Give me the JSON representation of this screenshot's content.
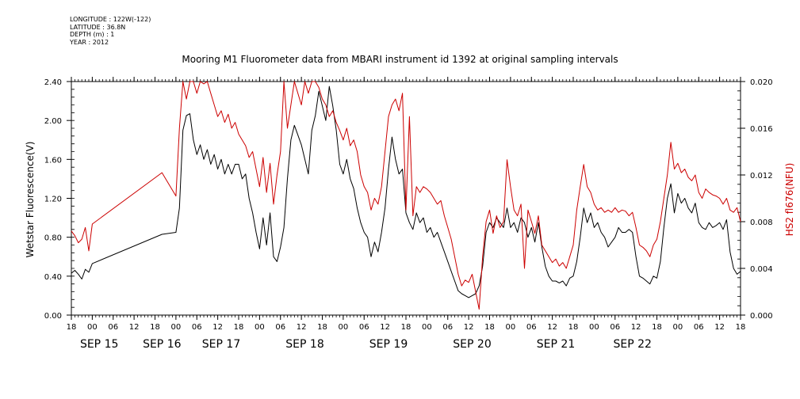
{
  "meta": {
    "longitude": "LONGITUDE : 122W(-122)",
    "latitude": "LATITUDE : 36.8N",
    "depth": "DEPTH (m) : 1",
    "year": "YEAR : 2012"
  },
  "chart_data": {
    "type": "line",
    "title": "Mooring M1 Fluorometer data from MBARI instrument id 1392 at original sampling intervals",
    "xlabel": "",
    "ylabel": "Wetstar Fluorescence(V)",
    "ylabel_right": "HS2 fl676(NFU)",
    "xlim": [
      -6,
      186
    ],
    "ylim": [
      0,
      2.4
    ],
    "ylim_right": [
      0,
      0.02
    ],
    "yticks": [
      "0.00",
      "0.40",
      "0.80",
      "1.20",
      "1.60",
      "2.00",
      "2.40"
    ],
    "yticks_right": [
      "0.000",
      "0.004",
      "0.008",
      "0.012",
      "0.016",
      "0.020"
    ],
    "hour_ticks": [
      {
        "h": -6,
        "label": "18"
      },
      {
        "h": 0,
        "label": "00"
      },
      {
        "h": 6,
        "label": "06"
      },
      {
        "h": 12,
        "label": "12"
      },
      {
        "h": 18,
        "label": "18"
      },
      {
        "h": 24,
        "label": "00"
      },
      {
        "h": 30,
        "label": "06"
      },
      {
        "h": 36,
        "label": "12"
      },
      {
        "h": 42,
        "label": "18"
      },
      {
        "h": 48,
        "label": "00"
      },
      {
        "h": 54,
        "label": "06"
      },
      {
        "h": 60,
        "label": "12"
      },
      {
        "h": 66,
        "label": "18"
      },
      {
        "h": 72,
        "label": "00"
      },
      {
        "h": 78,
        "label": "06"
      },
      {
        "h": 84,
        "label": "12"
      },
      {
        "h": 90,
        "label": "18"
      },
      {
        "h": 96,
        "label": "00"
      },
      {
        "h": 102,
        "label": "06"
      },
      {
        "h": 108,
        "label": "12"
      },
      {
        "h": 114,
        "label": "18"
      },
      {
        "h": 120,
        "label": "00"
      },
      {
        "h": 126,
        "label": "06"
      },
      {
        "h": 132,
        "label": "12"
      },
      {
        "h": 138,
        "label": "18"
      },
      {
        "h": 144,
        "label": "00"
      },
      {
        "h": 150,
        "label": "06"
      },
      {
        "h": 156,
        "label": "12"
      },
      {
        "h": 162,
        "label": "18"
      },
      {
        "h": 168,
        "label": "00"
      },
      {
        "h": 174,
        "label": "06"
      },
      {
        "h": 180,
        "label": "12"
      },
      {
        "h": 186,
        "label": "18"
      }
    ],
    "date_labels": [
      {
        "h": 2,
        "label": "SEP 15"
      },
      {
        "h": 20,
        "label": "SEP 16"
      },
      {
        "h": 37,
        "label": "SEP 17"
      },
      {
        "h": 61,
        "label": "SEP 18"
      },
      {
        "h": 85,
        "label": "SEP 19"
      },
      {
        "h": 109,
        "label": "SEP 20"
      },
      {
        "h": 133,
        "label": "SEP 21"
      },
      {
        "h": 155,
        "label": "SEP 22"
      }
    ],
    "series": [
      {
        "axis": "left",
        "color": "#000000",
        "x": [
          -6,
          -5,
          -4,
          -3,
          -2,
          -1,
          0,
          20,
          24,
          25,
          26,
          27,
          28,
          29,
          30,
          31,
          32,
          33,
          34,
          35,
          36,
          37,
          38,
          39,
          40,
          41,
          42,
          43,
          44,
          45,
          46,
          47,
          48,
          49,
          50,
          51,
          52,
          53,
          54,
          55,
          56,
          57,
          58,
          59,
          60,
          61,
          62,
          63,
          64,
          65,
          66,
          67,
          68,
          69,
          70,
          71,
          72,
          73,
          74,
          75,
          76,
          77,
          78,
          79,
          80,
          81,
          82,
          83,
          84,
          85,
          86,
          87,
          88,
          89,
          90,
          91,
          92,
          93,
          94,
          95,
          96,
          97,
          98,
          99,
          100,
          101,
          102,
          103,
          104,
          105,
          106,
          107,
          108,
          109,
          110,
          111,
          112,
          113,
          114,
          115,
          116,
          117,
          118,
          119,
          120,
          121,
          122,
          123,
          124,
          125,
          126,
          127,
          128,
          129,
          130,
          131,
          132,
          133,
          134,
          135,
          136,
          137,
          138,
          139,
          140,
          141,
          142,
          143,
          144,
          145,
          146,
          147,
          148,
          149,
          150,
          151,
          152,
          153,
          154,
          155,
          156,
          157,
          158,
          159,
          160,
          161,
          162,
          163,
          164,
          165,
          166,
          167,
          168,
          169,
          170,
          171,
          172,
          173,
          174,
          175,
          176,
          177,
          178,
          179,
          180,
          181,
          182,
          183,
          184,
          185,
          186
        ],
        "y": [
          0.43,
          0.46,
          0.42,
          0.37,
          0.47,
          0.44,
          0.53,
          0.83,
          0.85,
          1.1,
          1.9,
          2.05,
          2.07,
          1.8,
          1.65,
          1.75,
          1.6,
          1.7,
          1.55,
          1.65,
          1.5,
          1.6,
          1.45,
          1.55,
          1.45,
          1.55,
          1.55,
          1.4,
          1.45,
          1.2,
          1.05,
          0.85,
          0.68,
          1.0,
          0.72,
          1.05,
          0.6,
          0.55,
          0.7,
          0.9,
          1.4,
          1.8,
          1.95,
          1.85,
          1.75,
          1.6,
          1.45,
          1.9,
          2.05,
          2.3,
          2.15,
          2.0,
          2.35,
          2.15,
          1.9,
          1.55,
          1.45,
          1.6,
          1.4,
          1.3,
          1.1,
          0.95,
          0.85,
          0.8,
          0.6,
          0.75,
          0.65,
          0.85,
          1.1,
          1.5,
          1.83,
          1.6,
          1.45,
          1.5,
          1.05,
          0.95,
          0.88,
          1.05,
          0.95,
          1.0,
          0.85,
          0.9,
          0.8,
          0.85,
          0.75,
          0.65,
          0.55,
          0.45,
          0.35,
          0.25,
          0.22,
          0.2,
          0.18,
          0.2,
          0.22,
          0.3,
          0.5,
          0.85,
          0.95,
          0.9,
          1.0,
          0.95,
          0.9,
          1.1,
          0.9,
          0.95,
          0.85,
          1.0,
          0.95,
          0.8,
          0.9,
          0.75,
          0.95,
          0.7,
          0.5,
          0.4,
          0.35,
          0.35,
          0.33,
          0.35,
          0.3,
          0.38,
          0.4,
          0.55,
          0.8,
          1.1,
          0.95,
          1.05,
          0.9,
          0.95,
          0.85,
          0.8,
          0.7,
          0.75,
          0.8,
          0.9,
          0.85,
          0.85,
          0.88,
          0.85,
          0.6,
          0.4,
          0.38,
          0.35,
          0.32,
          0.4,
          0.38,
          0.55,
          0.9,
          1.2,
          1.35,
          1.05,
          1.25,
          1.15,
          1.2,
          1.1,
          1.05,
          1.15,
          0.95,
          0.9,
          0.88,
          0.95,
          0.9,
          0.92,
          0.95,
          0.88,
          0.98,
          0.65,
          0.48,
          0.42,
          0.45
        ]
      },
      {
        "axis": "right",
        "color": "#cc0000",
        "x": [
          -6,
          -5,
          -4,
          -3,
          -2,
          -1,
          0,
          20,
          24,
          25,
          26,
          27,
          28,
          29,
          30,
          31,
          32,
          33,
          34,
          35,
          36,
          37,
          38,
          39,
          40,
          41,
          42,
          43,
          44,
          45,
          46,
          47,
          48,
          49,
          50,
          51,
          52,
          53,
          54,
          55,
          56,
          57,
          58,
          59,
          60,
          61,
          62,
          63,
          64,
          65,
          66,
          67,
          68,
          69,
          70,
          71,
          72,
          73,
          74,
          75,
          76,
          77,
          78,
          79,
          80,
          81,
          82,
          83,
          84,
          85,
          86,
          87,
          88,
          89,
          90,
          91,
          92,
          93,
          94,
          95,
          96,
          97,
          98,
          99,
          100,
          101,
          102,
          103,
          104,
          105,
          106,
          107,
          108,
          109,
          110,
          111,
          112,
          113,
          114,
          115,
          116,
          117,
          118,
          119,
          120,
          121,
          122,
          123,
          124,
          125,
          126,
          127,
          128,
          129,
          130,
          131,
          132,
          133,
          134,
          135,
          136,
          137,
          138,
          139,
          140,
          141,
          142,
          143,
          144,
          145,
          146,
          147,
          148,
          149,
          150,
          151,
          152,
          153,
          154,
          155,
          156,
          157,
          158,
          159,
          160,
          161,
          162,
          163,
          164,
          165,
          166,
          167,
          168,
          169,
          170,
          171,
          172,
          173,
          174,
          175,
          176,
          177,
          178,
          179,
          180,
          181,
          182,
          183,
          184,
          185,
          186
        ],
        "y": [
          0.0072,
          0.0068,
          0.0062,
          0.0065,
          0.0075,
          0.0055,
          0.0078,
          0.0122,
          0.0102,
          0.016,
          0.02,
          0.0185,
          0.02,
          0.02,
          0.019,
          0.02,
          0.0198,
          0.02,
          0.019,
          0.018,
          0.017,
          0.0175,
          0.0165,
          0.0172,
          0.016,
          0.0165,
          0.0155,
          0.015,
          0.0145,
          0.0135,
          0.014,
          0.0125,
          0.011,
          0.0135,
          0.0105,
          0.013,
          0.0095,
          0.012,
          0.014,
          0.02,
          0.016,
          0.018,
          0.02,
          0.019,
          0.018,
          0.02,
          0.019,
          0.02,
          0.02,
          0.0195,
          0.0185,
          0.018,
          0.017,
          0.0175,
          0.0165,
          0.0158,
          0.015,
          0.016,
          0.0145,
          0.015,
          0.014,
          0.012,
          0.011,
          0.0105,
          0.009,
          0.01,
          0.0095,
          0.011,
          0.014,
          0.017,
          0.018,
          0.0185,
          0.0175,
          0.019,
          0.009,
          0.017,
          0.0085,
          0.011,
          0.0105,
          0.011,
          0.0108,
          0.0105,
          0.01,
          0.0095,
          0.0098,
          0.0085,
          0.0075,
          0.0065,
          0.005,
          0.0035,
          0.0025,
          0.003,
          0.0028,
          0.0035,
          0.002,
          0.0005,
          0.005,
          0.008,
          0.009,
          0.007,
          0.0085,
          0.0075,
          0.008,
          0.0133,
          0.011,
          0.009,
          0.0085,
          0.0095,
          0.004,
          0.009,
          0.008,
          0.007,
          0.0085,
          0.006,
          0.0055,
          0.005,
          0.0045,
          0.0048,
          0.0042,
          0.0045,
          0.004,
          0.005,
          0.006,
          0.009,
          0.011,
          0.0129,
          0.011,
          0.0105,
          0.0095,
          0.009,
          0.0092,
          0.0088,
          0.009,
          0.0088,
          0.0092,
          0.0088,
          0.009,
          0.0089,
          0.0085,
          0.0088,
          0.0075,
          0.006,
          0.0058,
          0.0055,
          0.005,
          0.006,
          0.0065,
          0.008,
          0.01,
          0.012,
          0.0148,
          0.0125,
          0.013,
          0.0122,
          0.0125,
          0.0118,
          0.0115,
          0.012,
          0.0105,
          0.01,
          0.0108,
          0.0105,
          0.0103,
          0.0102,
          0.01,
          0.0095,
          0.01,
          0.009,
          0.0088,
          0.0092,
          0.008
        ]
      }
    ]
  }
}
